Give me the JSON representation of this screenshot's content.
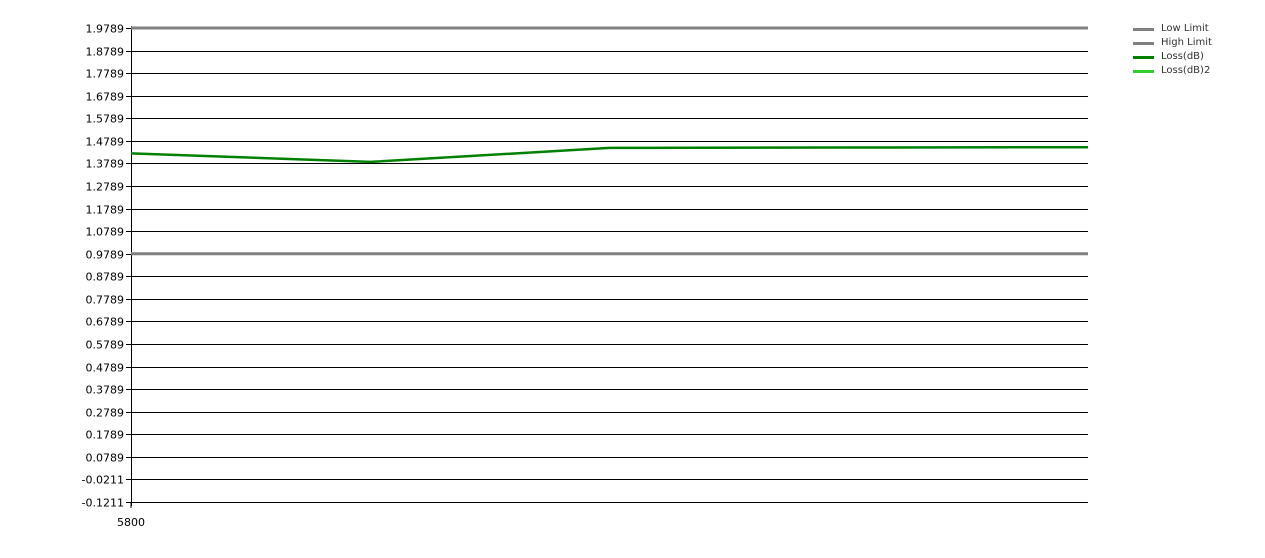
{
  "chart_data": {
    "type": "line",
    "title": "",
    "xlabel": "",
    "ylabel": "",
    "x_tick_labels": [
      "5800"
    ],
    "y_ticks": [
      1.9789,
      1.8789,
      1.7789,
      1.6789,
      1.5789,
      1.4789,
      1.3789,
      1.2789,
      1.1789,
      1.0789,
      0.9789,
      0.8789,
      0.7789,
      0.6789,
      0.5789,
      0.4789,
      0.3789,
      0.2789,
      0.1789,
      0.0789,
      -0.0211,
      -0.1211
    ],
    "y_tick_labels": [
      "1.9789",
      "1.8789",
      "1.7789",
      "1.6789",
      "1.5789",
      "1.4789",
      "1.3789",
      "1.2789",
      "1.1789",
      "1.0789",
      "0.9789",
      "0.8789",
      "0.7789",
      "0.6789",
      "0.5789",
      "0.4789",
      "0.3789",
      "0.2789",
      "0.1789",
      "0.0789",
      "-0.0211",
      "-0.1211"
    ],
    "ylim": [
      -0.1211,
      1.9789
    ],
    "x_points": [
      0,
      1,
      2,
      3,
      4
    ],
    "grid": true,
    "legend_position": "top-right",
    "series": [
      {
        "name": "Low Limit",
        "color": "#808080",
        "values": [
          1.9789,
          1.9789,
          1.9789,
          1.9789,
          1.9789
        ]
      },
      {
        "name": "High Limit",
        "color": "#808080",
        "values": [
          0.9789,
          0.9789,
          0.9789,
          0.9789,
          0.9789
        ]
      },
      {
        "name": "Loss(dB)",
        "color": "#008000",
        "values": [
          1.4235,
          1.3855,
          1.4475,
          1.4495,
          1.451
        ]
      },
      {
        "name": "Loss(dB)2",
        "color": "#32cd32",
        "values": []
      }
    ]
  }
}
